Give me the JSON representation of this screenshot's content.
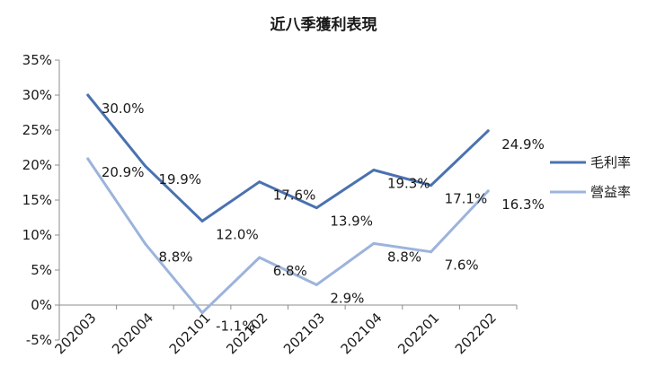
{
  "chart_data": {
    "type": "line",
    "title": "近八季獲利表現",
    "xlabel": "",
    "ylabel": "",
    "categories": [
      "202003",
      "202004",
      "202101",
      "202102",
      "202103",
      "202104",
      "202201",
      "202202"
    ],
    "ylim": [
      -5,
      35
    ],
    "yticks": [
      -5,
      0,
      5,
      10,
      15,
      20,
      25,
      30,
      35
    ],
    "ytick_labels": [
      "-5%",
      "0%",
      "5%",
      "10%",
      "15%",
      "20%",
      "25%",
      "30%",
      "35%"
    ],
    "grid": false,
    "legend_position": "right",
    "series": [
      {
        "name": "毛利率",
        "color": "#4a72b0",
        "values": [
          30.0,
          19.9,
          12.0,
          17.6,
          13.9,
          19.3,
          17.1,
          24.9
        ],
        "labels": [
          "30.0%",
          "19.9%",
          "12.0%",
          "17.6%",
          "13.9%",
          "19.3%",
          "17.1%",
          "24.9%"
        ]
      },
      {
        "name": "營益率",
        "color": "#9cb4dc",
        "values": [
          20.9,
          8.8,
          -1.1,
          6.8,
          2.9,
          8.8,
          7.6,
          16.3
        ],
        "labels": [
          "20.9%",
          "8.8%",
          "-1.1%",
          "6.8%",
          "2.9%",
          "8.8%",
          "7.6%",
          "16.3%"
        ]
      }
    ]
  }
}
